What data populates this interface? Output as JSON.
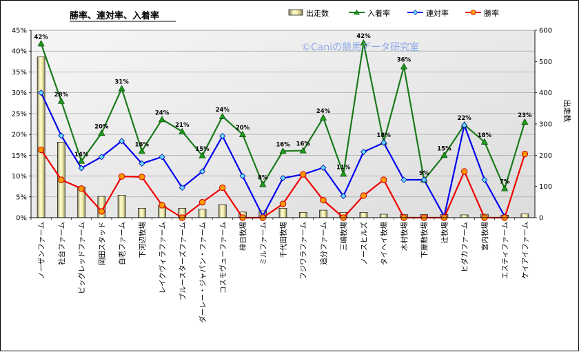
{
  "chart_data": {
    "type": "bar+line",
    "title": "勝率、連対率、入着率",
    "watermark": "©Caniの競馬データ研究室",
    "y_left_ticks": [
      "0%",
      "5%",
      "10%",
      "15%",
      "20%",
      "25%",
      "30%",
      "35%",
      "40%",
      "45%"
    ],
    "y_left_range": [
      0,
      45
    ],
    "y_right_ticks": [
      "0",
      "100",
      "200",
      "300",
      "400",
      "500",
      "600"
    ],
    "y_right_range": [
      0,
      600
    ],
    "y_right_label": "出走数",
    "categories": [
      "ノーザンファーム",
      "社台ファーム",
      "ビッグレッドファーム",
      "岡田スタッド",
      "白老ファーム",
      "下河辺牧場",
      "レイクヴィラファーム",
      "ブルースターズファーム",
      "ダーレー・ジャパン・ファーム",
      "コスモヴューファーム",
      "梓日牧場",
      "ミルファーム",
      "千代田牧場",
      "フジワラファーム",
      "追分ファーム",
      "三嶋牧場",
      "ノースヒルズ",
      "タイヘイ牧場",
      "木村牧場",
      "下屋敷牧場",
      "辻牧場",
      "ヒダカファーム",
      "宮内牧場",
      "エスティファーム",
      "ケイアイファーム"
    ],
    "legend": {
      "starts": "出走数",
      "placed": "入着率",
      "top2": "連対率",
      "win": "勝率"
    },
    "series": [
      {
        "key": "starts",
        "name": "出走数",
        "type": "bar",
        "axis": "right",
        "values": [
          515,
          242,
          98,
          68,
          72,
          30,
          38,
          30,
          27,
          42,
          18,
          22,
          30,
          17,
          24,
          17,
          17,
          11,
          10,
          10,
          10,
          9,
          11,
          8,
          12
        ]
      },
      {
        "key": "placed",
        "name": "入着率",
        "type": "line",
        "axis": "left",
        "values": [
          41.8,
          28.0,
          13.6,
          20.3,
          31.0,
          16.0,
          23.6,
          20.7,
          14.9,
          24.3,
          20.0,
          8.0,
          16.0,
          16.1,
          24.0,
          10.5,
          42.0,
          18.2,
          36.3,
          9.1,
          15.0,
          22.3,
          18.2,
          7.0,
          23.0
        ],
        "data_labels": [
          "42%",
          "28%",
          "14%",
          "20%",
          "31%",
          "16%",
          "24%",
          "21%",
          "15%",
          "24%",
          "20%",
          "8%",
          "16%",
          "16%",
          "24%",
          "11%",
          "42%",
          "18%",
          "36%",
          "9%",
          "15%",
          "22%",
          "18%",
          "7%",
          "23%"
        ]
      },
      {
        "key": "top2",
        "name": "連対率",
        "type": "line",
        "axis": "left",
        "values": [
          30.0,
          19.7,
          11.9,
          14.6,
          18.4,
          13.0,
          14.6,
          7.2,
          11.1,
          19.6,
          10.0,
          0.4,
          9.5,
          10.4,
          12.0,
          5.2,
          15.8,
          18.0,
          9.1,
          9.1,
          0.3,
          22.2,
          9.1,
          0.3,
          null
        ]
      },
      {
        "key": "win",
        "name": "勝率",
        "type": "line",
        "axis": "left",
        "values": [
          16.3,
          9.1,
          7.0,
          1.5,
          9.9,
          9.8,
          3.0,
          0.0,
          3.7,
          7.2,
          0.0,
          0.0,
          3.3,
          10.4,
          4.2,
          0.0,
          5.3,
          9.1,
          0.0,
          0.0,
          0.0,
          11.1,
          0.0,
          0.0,
          15.3
        ]
      }
    ]
  }
}
